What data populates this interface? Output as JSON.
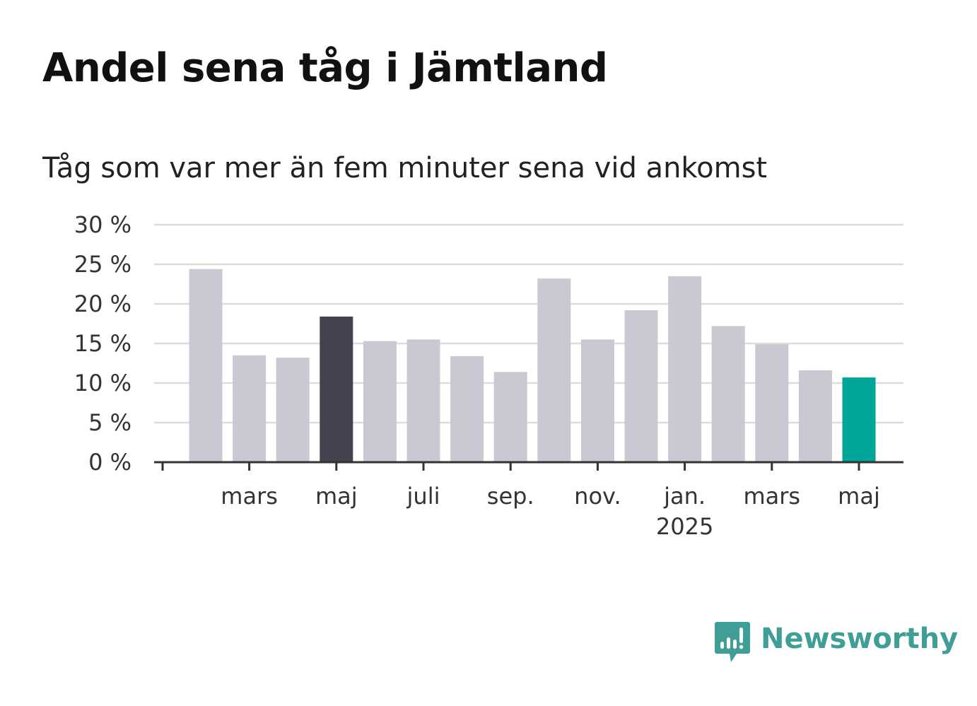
{
  "title": "Andel sena tåg i Jämtland",
  "subtitle": "Tåg som var mer än fem minuter sena vid ankomst",
  "brand": {
    "name": "Newsworthy",
    "logo_icon": "speech-bubble-bar-chart-icon",
    "color": "#3f9e96"
  },
  "colors": {
    "default_bar": "#c9c8d3",
    "highlight_dark": "#43424f",
    "highlight_current": "#00a59a",
    "gridline": "#dddddd",
    "axis": "#333333"
  },
  "chart_data": {
    "type": "bar",
    "title": "Andel sena tåg i Jämtland",
    "subtitle": "Tåg som var mer än fem minuter sena vid ankomst",
    "xlabel": "",
    "ylabel": "",
    "ylim": [
      0,
      30
    ],
    "y_ticks": [
      {
        "value": 0,
        "label": "0 %"
      },
      {
        "value": 5,
        "label": "5 %"
      },
      {
        "value": 10,
        "label": "10 %"
      },
      {
        "value": 15,
        "label": "15 %"
      },
      {
        "value": 20,
        "label": "20 %"
      },
      {
        "value": 25,
        "label": "25 %"
      },
      {
        "value": 30,
        "label": "30 %"
      }
    ],
    "grid": true,
    "legend": "none",
    "categories": [
      "2024-02",
      "2024-03",
      "2024-04",
      "2024-05",
      "2024-06",
      "2024-07",
      "2024-08",
      "2024-09",
      "2024-10",
      "2024-11",
      "2024-12",
      "2025-01",
      "2025-02",
      "2025-03",
      "2025-04",
      "2025-05"
    ],
    "values": [
      24.4,
      13.5,
      13.2,
      18.4,
      15.3,
      15.5,
      13.4,
      11.4,
      23.2,
      15.5,
      19.2,
      23.5,
      17.2,
      14.9,
      11.6,
      10.7
    ],
    "highlight": {
      "2024-05": "highlight_dark",
      "2025-05": "highlight_current"
    },
    "x_ticks": [
      {
        "category": "2024-03",
        "label": "mars",
        "sublabel": ""
      },
      {
        "category": "2024-05",
        "label": "maj",
        "sublabel": ""
      },
      {
        "category": "2024-07",
        "label": "juli",
        "sublabel": ""
      },
      {
        "category": "2024-09",
        "label": "sep.",
        "sublabel": ""
      },
      {
        "category": "2024-11",
        "label": "nov.",
        "sublabel": ""
      },
      {
        "category": "2025-01",
        "label": "jan.",
        "sublabel": "2025"
      },
      {
        "category": "2025-03",
        "label": "mars",
        "sublabel": ""
      },
      {
        "category": "2025-05",
        "label": "maj",
        "sublabel": ""
      }
    ]
  }
}
